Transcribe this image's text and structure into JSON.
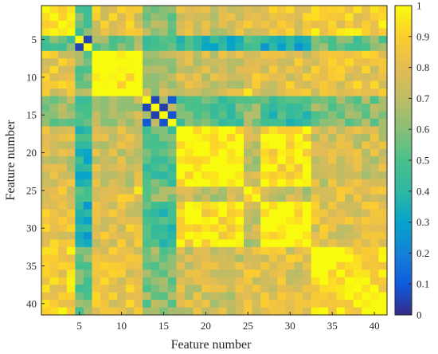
{
  "chart_data": {
    "type": "heatmap",
    "title": "",
    "xlabel": "Feature number",
    "ylabel": "Feature number",
    "n": 41,
    "xticks": [
      5,
      10,
      15,
      20,
      25,
      30,
      35,
      40
    ],
    "yticks": [
      5,
      10,
      15,
      20,
      25,
      30,
      35,
      40
    ],
    "colorbar": {
      "min": 0,
      "max": 1,
      "ticks": [
        "0",
        "0.1",
        "0.2",
        "0.3",
        "0.4",
        "0.5",
        "0.6",
        "0.7",
        "0.8",
        "0.9",
        "1"
      ]
    },
    "colormap": "parula",
    "block_values": [
      [
        1.0,
        0.55,
        0.82,
        0.6,
        0.75,
        0.8,
        0.82,
        0.88
      ],
      [
        0.55,
        0.35,
        0.6,
        0.5,
        0.4,
        0.55,
        0.35,
        0.55
      ],
      [
        0.82,
        0.6,
        1.0,
        0.7,
        0.75,
        0.85,
        0.8,
        0.82
      ],
      [
        0.6,
        0.5,
        0.7,
        0.45,
        0.5,
        0.6,
        0.45,
        0.6
      ],
      [
        0.75,
        0.4,
        0.75,
        0.5,
        1.0,
        0.7,
        0.95,
        0.75
      ],
      [
        0.8,
        0.55,
        0.85,
        0.6,
        0.7,
        0.9,
        0.7,
        0.8
      ],
      [
        0.82,
        0.35,
        0.8,
        0.45,
        0.95,
        0.7,
        1.0,
        0.8
      ],
      [
        0.88,
        0.55,
        0.82,
        0.6,
        0.75,
        0.8,
        0.8,
        0.95
      ]
    ]
  }
}
